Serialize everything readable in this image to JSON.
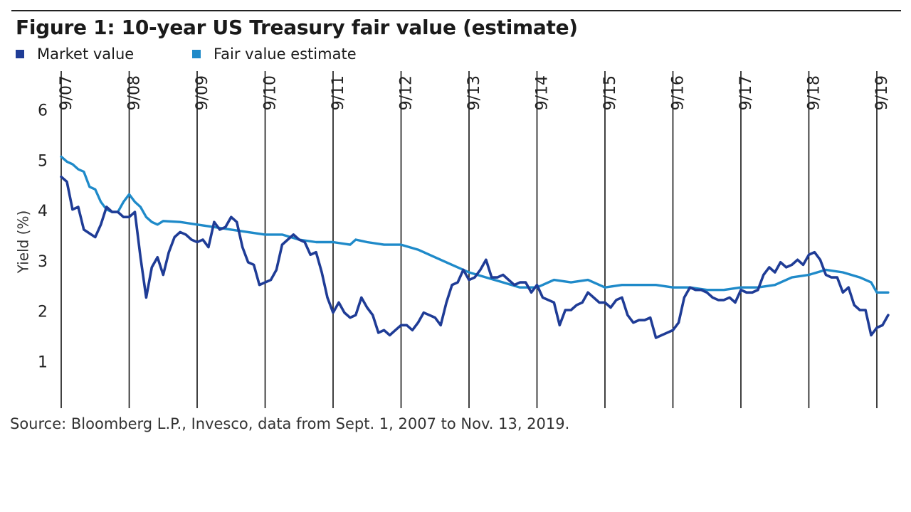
{
  "figure": {
    "title": "Figure 1: 10-year US Treasury fair value (estimate)",
    "source": "Source: Bloomberg L.P., Invesco, data from Sept. 1, 2007 to Nov. 13, 2019."
  },
  "chart_data": {
    "type": "line",
    "title": "Figure 1: 10-year US Treasury fair value (estimate)",
    "xlabel": "",
    "ylabel": "Yield (%)",
    "ylim": [
      0.1,
      6.8
    ],
    "yticks": [
      1,
      2,
      3,
      4,
      5,
      6
    ],
    "xlim": [
      "2007-09",
      "2019-11"
    ],
    "xticks": [
      {
        "label": "9/07",
        "date": "2007-09"
      },
      {
        "label": "9/08",
        "date": "2008-09"
      },
      {
        "label": "9/09",
        "date": "2009-09"
      },
      {
        "label": "9/10",
        "date": "2010-09"
      },
      {
        "label": "9/11",
        "date": "2011-09"
      },
      {
        "label": "9/12",
        "date": "2012-09"
      },
      {
        "label": "9/13",
        "date": "2013-09"
      },
      {
        "label": "9/14",
        "date": "2014-09"
      },
      {
        "label": "9/15",
        "date": "2015-09"
      },
      {
        "label": "9/16",
        "date": "2016-09"
      },
      {
        "label": "9/17",
        "date": "2017-09"
      },
      {
        "label": "9/18",
        "date": "2018-09"
      },
      {
        "label": "9/19",
        "date": "2019-09"
      }
    ],
    "grid": "vertical lines at each x tick",
    "legend": "top-left",
    "series": [
      {
        "name": "Market value",
        "color": "#1f3c96",
        "points": [
          [
            "2007-09",
            4.7
          ],
          [
            "2007-10",
            4.6
          ],
          [
            "2007-11",
            4.05
          ],
          [
            "2007-12",
            4.1
          ],
          [
            "2008-01",
            3.65
          ],
          [
            "2008-03",
            3.5
          ],
          [
            "2008-04",
            3.75
          ],
          [
            "2008-05",
            4.1
          ],
          [
            "2008-06",
            4.0
          ],
          [
            "2008-07",
            4.0
          ],
          [
            "2008-08",
            3.9
          ],
          [
            "2008-09",
            3.9
          ],
          [
            "2008-10",
            4.0
          ],
          [
            "2008-11",
            3.1
          ],
          [
            "2008-12",
            2.3
          ],
          [
            "2009-01",
            2.9
          ],
          [
            "2009-02",
            3.1
          ],
          [
            "2009-03",
            2.75
          ],
          [
            "2009-04",
            3.2
          ],
          [
            "2009-05",
            3.5
          ],
          [
            "2009-06",
            3.6
          ],
          [
            "2009-07",
            3.55
          ],
          [
            "2009-08",
            3.45
          ],
          [
            "2009-09",
            3.4
          ],
          [
            "2009-10",
            3.45
          ],
          [
            "2009-11",
            3.3
          ],
          [
            "2009-12",
            3.8
          ],
          [
            "2010-01",
            3.65
          ],
          [
            "2010-02",
            3.7
          ],
          [
            "2010-03",
            3.9
          ],
          [
            "2010-04",
            3.8
          ],
          [
            "2010-05",
            3.3
          ],
          [
            "2010-06",
            3.0
          ],
          [
            "2010-07",
            2.95
          ],
          [
            "2010-08",
            2.55
          ],
          [
            "2010-09",
            2.6
          ],
          [
            "2010-10",
            2.65
          ],
          [
            "2010-11",
            2.85
          ],
          [
            "2010-12",
            3.35
          ],
          [
            "2011-01",
            3.45
          ],
          [
            "2011-02",
            3.55
          ],
          [
            "2011-03",
            3.45
          ],
          [
            "2011-04",
            3.4
          ],
          [
            "2011-05",
            3.15
          ],
          [
            "2011-06",
            3.2
          ],
          [
            "2011-07",
            2.8
          ],
          [
            "2011-08",
            2.3
          ],
          [
            "2011-09",
            2.0
          ],
          [
            "2011-10",
            2.2
          ],
          [
            "2011-11",
            2.0
          ],
          [
            "2011-12",
            1.9
          ],
          [
            "2012-01",
            1.95
          ],
          [
            "2012-02",
            2.3
          ],
          [
            "2012-03",
            2.1
          ],
          [
            "2012-04",
            1.95
          ],
          [
            "2012-05",
            1.6
          ],
          [
            "2012-06",
            1.65
          ],
          [
            "2012-07",
            1.55
          ],
          [
            "2012-08",
            1.65
          ],
          [
            "2012-09",
            1.75
          ],
          [
            "2012-10",
            1.75
          ],
          [
            "2012-11",
            1.65
          ],
          [
            "2012-12",
            1.8
          ],
          [
            "2013-01",
            2.0
          ],
          [
            "2013-02",
            1.95
          ],
          [
            "2013-03",
            1.9
          ],
          [
            "2013-04",
            1.75
          ],
          [
            "2013-05",
            2.2
          ],
          [
            "2013-06",
            2.55
          ],
          [
            "2013-07",
            2.6
          ],
          [
            "2013-08",
            2.85
          ],
          [
            "2013-09",
            2.65
          ],
          [
            "2013-10",
            2.7
          ],
          [
            "2013-11",
            2.85
          ],
          [
            "2013-12",
            3.05
          ],
          [
            "2014-01",
            2.7
          ],
          [
            "2014-02",
            2.7
          ],
          [
            "2014-03",
            2.75
          ],
          [
            "2014-04",
            2.65
          ],
          [
            "2014-05",
            2.55
          ],
          [
            "2014-06",
            2.6
          ],
          [
            "2014-07",
            2.6
          ],
          [
            "2014-08",
            2.4
          ],
          [
            "2014-09",
            2.55
          ],
          [
            "2014-10",
            2.3
          ],
          [
            "2014-11",
            2.25
          ],
          [
            "2014-12",
            2.2
          ],
          [
            "2015-01",
            1.75
          ],
          [
            "2015-02",
            2.05
          ],
          [
            "2015-03",
            2.05
          ],
          [
            "2015-04",
            2.15
          ],
          [
            "2015-05",
            2.2
          ],
          [
            "2015-06",
            2.4
          ],
          [
            "2015-07",
            2.3
          ],
          [
            "2015-08",
            2.2
          ],
          [
            "2015-09",
            2.2
          ],
          [
            "2015-10",
            2.1
          ],
          [
            "2015-11",
            2.25
          ],
          [
            "2015-12",
            2.3
          ],
          [
            "2016-01",
            1.95
          ],
          [
            "2016-02",
            1.8
          ],
          [
            "2016-03",
            1.85
          ],
          [
            "2016-04",
            1.85
          ],
          [
            "2016-05",
            1.9
          ],
          [
            "2016-06",
            1.5
          ],
          [
            "2016-07",
            1.55
          ],
          [
            "2016-08",
            1.6
          ],
          [
            "2016-09",
            1.65
          ],
          [
            "2016-10",
            1.8
          ],
          [
            "2016-11",
            2.3
          ],
          [
            "2016-12",
            2.5
          ],
          [
            "2017-01",
            2.45
          ],
          [
            "2017-02",
            2.45
          ],
          [
            "2017-03",
            2.4
          ],
          [
            "2017-04",
            2.3
          ],
          [
            "2017-05",
            2.25
          ],
          [
            "2017-06",
            2.25
          ],
          [
            "2017-07",
            2.3
          ],
          [
            "2017-08",
            2.2
          ],
          [
            "2017-09",
            2.45
          ],
          [
            "2017-10",
            2.4
          ],
          [
            "2017-11",
            2.4
          ],
          [
            "2017-12",
            2.45
          ],
          [
            "2018-01",
            2.75
          ],
          [
            "2018-02",
            2.9
          ],
          [
            "2018-03",
            2.8
          ],
          [
            "2018-04",
            3.0
          ],
          [
            "2018-05",
            2.9
          ],
          [
            "2018-06",
            2.95
          ],
          [
            "2018-07",
            3.05
          ],
          [
            "2018-08",
            2.95
          ],
          [
            "2018-09",
            3.15
          ],
          [
            "2018-10",
            3.2
          ],
          [
            "2018-11",
            3.05
          ],
          [
            "2018-12",
            2.75
          ],
          [
            "2019-01",
            2.7
          ],
          [
            "2019-02",
            2.7
          ],
          [
            "2019-03",
            2.4
          ],
          [
            "2019-04",
            2.5
          ],
          [
            "2019-05",
            2.15
          ],
          [
            "2019-06",
            2.05
          ],
          [
            "2019-07",
            2.05
          ],
          [
            "2019-08",
            1.55
          ],
          [
            "2019-09",
            1.7
          ],
          [
            "2019-10",
            1.75
          ],
          [
            "2019-11",
            1.95
          ]
        ]
      },
      {
        "name": "Fair value estimate",
        "color": "#1f8ac9",
        "points": [
          [
            "2007-09",
            5.1
          ],
          [
            "2007-10",
            5.0
          ],
          [
            "2007-11",
            4.95
          ],
          [
            "2007-12",
            4.85
          ],
          [
            "2008-01",
            4.8
          ],
          [
            "2008-02",
            4.5
          ],
          [
            "2008-03",
            4.45
          ],
          [
            "2008-04",
            4.2
          ],
          [
            "2008-05",
            4.05
          ],
          [
            "2008-06",
            4.0
          ],
          [
            "2008-07",
            4.0
          ],
          [
            "2008-08",
            4.2
          ],
          [
            "2008-09",
            4.35
          ],
          [
            "2008-10",
            4.2
          ],
          [
            "2008-11",
            4.1
          ],
          [
            "2008-12",
            3.9
          ],
          [
            "2009-01",
            3.8
          ],
          [
            "2009-02",
            3.75
          ],
          [
            "2009-03",
            3.82
          ],
          [
            "2009-06",
            3.8
          ],
          [
            "2009-09",
            3.75
          ],
          [
            "2009-12",
            3.7
          ],
          [
            "2010-03",
            3.65
          ],
          [
            "2010-06",
            3.6
          ],
          [
            "2010-09",
            3.55
          ],
          [
            "2010-12",
            3.55
          ],
          [
            "2011-03",
            3.45
          ],
          [
            "2011-06",
            3.4
          ],
          [
            "2011-09",
            3.4
          ],
          [
            "2011-12",
            3.35
          ],
          [
            "2012-01",
            3.45
          ],
          [
            "2012-03",
            3.4
          ],
          [
            "2012-06",
            3.35
          ],
          [
            "2012-09",
            3.35
          ],
          [
            "2012-12",
            3.25
          ],
          [
            "2013-03",
            3.1
          ],
          [
            "2013-06",
            2.95
          ],
          [
            "2013-09",
            2.8
          ],
          [
            "2013-12",
            2.7
          ],
          [
            "2014-03",
            2.6
          ],
          [
            "2014-06",
            2.5
          ],
          [
            "2014-09",
            2.5
          ],
          [
            "2014-12",
            2.65
          ],
          [
            "2015-03",
            2.6
          ],
          [
            "2015-06",
            2.65
          ],
          [
            "2015-09",
            2.5
          ],
          [
            "2015-12",
            2.55
          ],
          [
            "2016-03",
            2.55
          ],
          [
            "2016-06",
            2.55
          ],
          [
            "2016-09",
            2.5
          ],
          [
            "2016-12",
            2.5
          ],
          [
            "2017-03",
            2.45
          ],
          [
            "2017-06",
            2.45
          ],
          [
            "2017-09",
            2.5
          ],
          [
            "2017-12",
            2.5
          ],
          [
            "2018-03",
            2.55
          ],
          [
            "2018-06",
            2.7
          ],
          [
            "2018-09",
            2.75
          ],
          [
            "2018-12",
            2.85
          ],
          [
            "2019-03",
            2.8
          ],
          [
            "2019-06",
            2.7
          ],
          [
            "2019-08",
            2.6
          ],
          [
            "2019-09",
            2.4
          ],
          [
            "2019-11",
            2.4
          ]
        ]
      }
    ]
  }
}
